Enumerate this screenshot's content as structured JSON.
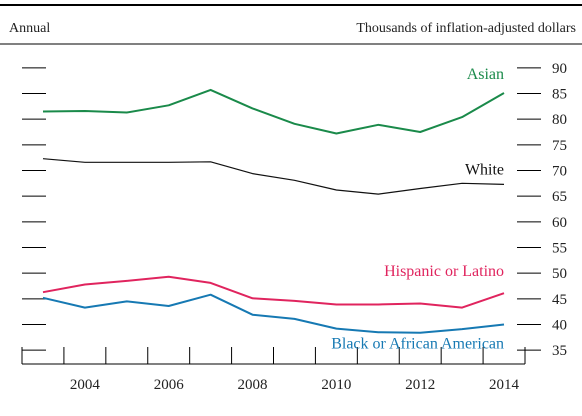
{
  "header": {
    "left_label": "Annual",
    "right_label": "Thousands of inflation-adjusted dollars"
  },
  "chart_data": {
    "type": "line",
    "title": "",
    "xlabel": "",
    "ylabel": "Thousands of inflation-adjusted dollars",
    "frequency": "Annual",
    "x": [
      2003,
      2004,
      2005,
      2006,
      2007,
      2008,
      2009,
      2010,
      2011,
      2012,
      2013,
      2014
    ],
    "x_tick_labels": [
      "2004",
      "2006",
      "2008",
      "2010",
      "2012",
      "2014"
    ],
    "xlim": [
      2002.5,
      2014.5
    ],
    "y_tick_labels": [
      "35",
      "40",
      "45",
      "50",
      "55",
      "60",
      "65",
      "70",
      "75",
      "80",
      "85",
      "90"
    ],
    "ylim": [
      32.5,
      92.5
    ],
    "grid": false,
    "legend": "direct labels next to each line",
    "series": [
      {
        "name": "Asian",
        "color": "#1a8a4a",
        "values": [
          81.5,
          81.6,
          81.3,
          82.7,
          85.7,
          82.1,
          79.1,
          77.2,
          78.9,
          77.5,
          80.4,
          85.1
        ]
      },
      {
        "name": "White",
        "color": "#111111",
        "values": [
          72.3,
          71.6,
          71.6,
          71.6,
          71.7,
          69.4,
          68.1,
          66.2,
          65.4,
          66.5,
          67.5,
          67.3
        ]
      },
      {
        "name": "Hispanic or Latino",
        "color": "#e0245e",
        "values": [
          46.3,
          47.8,
          48.5,
          49.3,
          48.1,
          45.1,
          44.6,
          43.9,
          43.9,
          44.1,
          43.3,
          46.1
        ]
      },
      {
        "name": "Black or African American",
        "color": "#1679b3",
        "values": [
          45.2,
          43.3,
          44.5,
          43.6,
          45.8,
          41.9,
          41.1,
          39.2,
          38.5,
          38.4,
          39.1,
          40.0
        ]
      }
    ]
  }
}
